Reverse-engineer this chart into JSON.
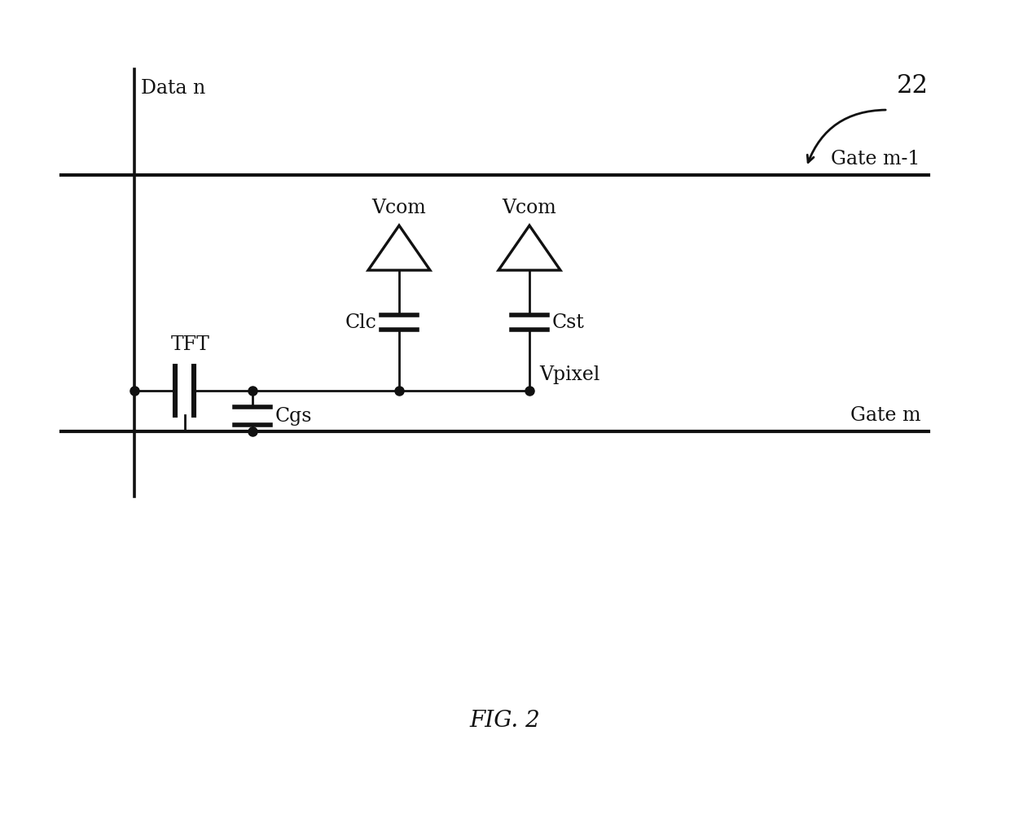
{
  "bg_color": "#ffffff",
  "line_color": "#111111",
  "lw": 2.0,
  "fig_label": "FIG. 2",
  "ref_num": "22",
  "labels": {
    "data_n": "Data n",
    "gate_m1": "Gate m-1",
    "gate_m": "Gate m",
    "tft": "TFT",
    "clc": "Clc",
    "cst": "Cst",
    "cgs": "Cgs",
    "vcom1": "Vcom",
    "vcom2": "Vcom",
    "vpixel": "Vpixel"
  }
}
